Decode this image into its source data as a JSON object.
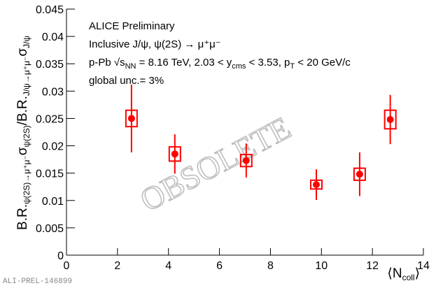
{
  "chart_data": {
    "type": "errorbar",
    "ylabel": [
      "B.R.",
      "ψ(2S)→μ⁺μ⁻",
      "σ",
      "ψ(2S)",
      "/B.R.",
      "J/ψ→μ⁺μ⁻",
      "σ",
      "J/ψ"
    ],
    "xlabel": [
      "⟨N",
      "coll",
      "⟩"
    ],
    "annotations": [
      [
        "ALICE Preliminary"
      ],
      [
        "Inclusive J/ψ, ψ(2S) → μ⁺μ⁻"
      ],
      [
        "p-Pb √s",
        "NN",
        " = 8.16 TeV, 2.03 < y",
        "cms",
        " < 3.53, p",
        "T",
        " < 20 GeV/c"
      ],
      [
        "global unc.= 3%"
      ]
    ],
    "watermark": "OBSOLETE",
    "footer": "ALI-PREL-146899",
    "xlim": [
      0,
      14
    ],
    "xticks": [
      0,
      2,
      4,
      6,
      8,
      10,
      12,
      14
    ],
    "ylim": [
      0,
      0.045
    ],
    "yticks": [
      0,
      0.005,
      0.01,
      0.015,
      0.02,
      0.025,
      0.03,
      0.035,
      0.04,
      0.045
    ],
    "series": [
      {
        "color": "#ff0000",
        "x": [
          2.55,
          4.25,
          7.05,
          9.8,
          11.5,
          12.7
        ],
        "values": [
          0.025,
          0.0185,
          0.0173,
          0.0129,
          0.0148,
          0.0248
        ],
        "errors": [
          0.0062,
          0.0036,
          0.0031,
          0.0028,
          0.004,
          0.0045
        ],
        "sys_errors": [
          0.0015,
          0.0013,
          0.0011,
          0.0008,
          0.0011,
          0.0017
        ]
      }
    ]
  }
}
